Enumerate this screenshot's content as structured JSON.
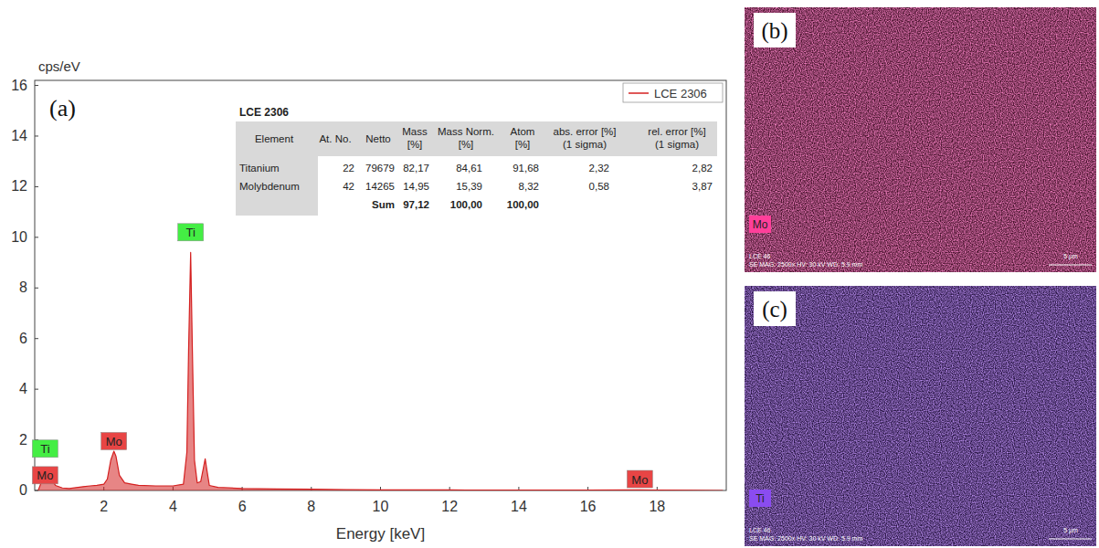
{
  "chart_data": {
    "type": "line",
    "panel_label": "(a)",
    "y_label": "cps/eV",
    "x_label": "Energy [keV]",
    "xlim": [
      0,
      20
    ],
    "ylim": [
      0,
      16.2
    ],
    "xticks": [
      2,
      4,
      6,
      8,
      10,
      12,
      14,
      16,
      18
    ],
    "yticks": [
      0,
      2,
      4,
      6,
      8,
      10,
      12,
      14,
      16
    ],
    "grid": false,
    "legend": "top-right",
    "x": [
      0.1,
      0.2,
      0.3,
      0.4,
      0.45,
      0.5,
      0.6,
      0.8,
      1.0,
      1.4,
      1.6,
      1.8,
      2.0,
      2.1,
      2.2,
      2.29,
      2.35,
      2.45,
      2.6,
      2.8,
      3.0,
      3.5,
      4.0,
      4.3,
      4.4,
      4.45,
      4.51,
      4.56,
      4.62,
      4.7,
      4.8,
      4.88,
      4.93,
      4.98,
      5.05,
      5.3,
      6.0,
      7.0,
      8.0,
      9.0,
      10.0,
      12.0,
      14.0,
      16.0,
      17.48,
      18.0,
      19.9
    ],
    "series": [
      {
        "name": "LCE 2306",
        "color": "#d42020",
        "values": [
          0.0,
          0.35,
          0.6,
          0.55,
          0.5,
          0.4,
          0.2,
          0.1,
          0.08,
          0.15,
          0.18,
          0.2,
          0.25,
          0.45,
          1.2,
          1.55,
          1.35,
          0.6,
          0.3,
          0.25,
          0.2,
          0.18,
          0.18,
          0.25,
          1.5,
          5.5,
          9.4,
          5.5,
          1.2,
          0.3,
          0.35,
          0.9,
          1.25,
          0.8,
          0.2,
          0.12,
          0.08,
          0.06,
          0.05,
          0.03,
          0.02,
          0.02,
          0.01,
          0.01,
          0.02,
          0.01,
          0.0
        ]
      }
    ],
    "annotations": [
      {
        "text": "Ti",
        "x": 4.51,
        "y": 10.2,
        "color": "#44ee44"
      },
      {
        "text": "Mo",
        "x": 2.29,
        "y": 1.95,
        "color": "#e84545"
      },
      {
        "text": "Ti",
        "x": 0.3,
        "y": 1.65,
        "color": "#44ee44"
      },
      {
        "text": "Mo",
        "x": 0.3,
        "y": 0.6,
        "color": "#e84545"
      },
      {
        "text": "Mo",
        "x": 17.5,
        "y": 0.45,
        "color": "#e84545"
      }
    ]
  },
  "table": {
    "title": "LCE 2306",
    "columns": [
      "Element",
      "At. No.",
      "Netto",
      "Mass [%]",
      "Mass Norm. [%]",
      "Atom [%]",
      "abs. error [%] (1 sigma)",
      "rel. error [%] (1 sigma)"
    ],
    "rows": [
      [
        "Titanium",
        "22",
        "79679",
        "82,17",
        "84,61",
        "91,68",
        "2,32",
        "2,82"
      ],
      [
        "Molybdenum",
        "42",
        "14265",
        "14,95",
        "15,39",
        "8,32",
        "0,58",
        "3,87"
      ]
    ],
    "sum": {
      "label": "Sum",
      "mass": "97,12",
      "mass_norm": "100,00",
      "atom": "100,00"
    }
  },
  "maps": [
    {
      "panel_label": "(b)",
      "element": "Mo",
      "color": "#ff3f9a",
      "footer": [
        "LCE 46",
        "SE  MAG: 2500x  HV: 30 kV  WD: 5.9 mm"
      ],
      "scale_bar": "5 µm"
    },
    {
      "panel_label": "(c)",
      "element": "Ti",
      "color": "#8a4cf0",
      "footer": [
        "LCE 46",
        "SE  MAG: 2500x  HV: 30 kV  WD: 5.9 mm"
      ],
      "scale_bar": "5 µm"
    }
  ]
}
